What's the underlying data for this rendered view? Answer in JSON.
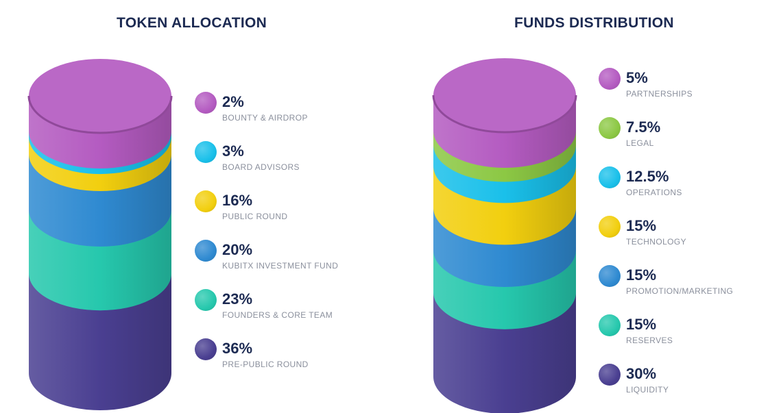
{
  "chart_data": [
    {
      "type": "stacked-cylinder",
      "title": "TOKEN ALLOCATION",
      "unit": "%",
      "segments": [
        {
          "label": "BOUNTY & AIRDROP",
          "value": 2,
          "display": "2%",
          "color": "#b45bc1"
        },
        {
          "label": "BOARD ADVISORS",
          "value": 3,
          "display": "3%",
          "color": "#1ac0ea"
        },
        {
          "label": "PUBLIC ROUND",
          "value": 16,
          "display": "16%",
          "color": "#f2cf0f"
        },
        {
          "label": "KUBITX INVESTMENT FUND",
          "value": 20,
          "display": "20%",
          "color": "#2f8ad1"
        },
        {
          "label": "FOUNDERS & CORE TEAM",
          "value": 23,
          "display": "23%",
          "color": "#26c8ad"
        },
        {
          "label": "PRE-PUBLIC ROUND",
          "value": 36,
          "display": "36%",
          "color": "#4a3f91"
        }
      ]
    },
    {
      "type": "stacked-cylinder",
      "title": "FUNDS DISTRIBUTION",
      "unit": "%",
      "segments": [
        {
          "label": "PARTNERSHIPS",
          "value": 5,
          "display": "5%",
          "color": "#b45bc1"
        },
        {
          "label": "LEGAL",
          "value": 7.5,
          "display": "7.5%",
          "color": "#8cc844"
        },
        {
          "label": "OPERATIONS",
          "value": 12.5,
          "display": "12.5%",
          "color": "#1ac0ea"
        },
        {
          "label": "TECHNOLOGY",
          "value": 15,
          "display": "15%",
          "color": "#f2cf0f"
        },
        {
          "label": "PROMOTION/MARKETING",
          "value": 15,
          "display": "15%",
          "color": "#2f8ad1"
        },
        {
          "label": "RESERVES",
          "value": 15,
          "display": "15%",
          "color": "#26c8ad"
        },
        {
          "label": "LIQUIDITY",
          "value": 30,
          "display": "30%",
          "color": "#4a3f91"
        }
      ]
    }
  ]
}
